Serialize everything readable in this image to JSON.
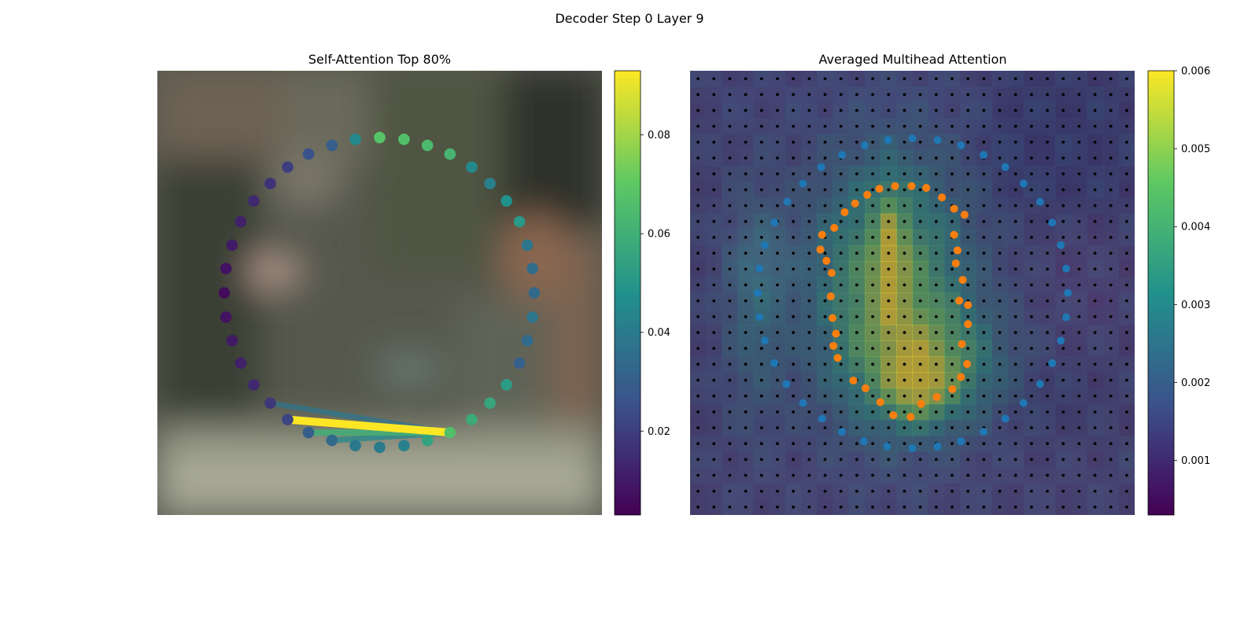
{
  "figure": {
    "title": "Decoder Step 0 Layer 9"
  },
  "colors": {
    "viridis": [
      "#440154",
      "#3b528b",
      "#21918c",
      "#5ec962",
      "#fde725"
    ],
    "orange": "#ff7f0e",
    "blue": "#1f77b4"
  },
  "chart_data": [
    {
      "type": "scatter",
      "title": "Self-Attention Top 80%",
      "image_size": 512,
      "xlim": [
        0,
        512
      ],
      "ylim": [
        512,
        0
      ],
      "colorbar": {
        "min": 0.003,
        "max": 0.093,
        "ticks": [
          0.02,
          0.04,
          0.06,
          0.08
        ],
        "tick_labels": [
          "0.02",
          "0.04",
          "0.06",
          "0.08"
        ]
      },
      "points": [
        {
          "x": 256,
          "y": 77,
          "v": 0.068
        },
        {
          "x": 284,
          "y": 79,
          "v": 0.066
        },
        {
          "x": 311,
          "y": 86,
          "v": 0.064
        },
        {
          "x": 337,
          "y": 96,
          "v": 0.062
        },
        {
          "x": 362,
          "y": 111,
          "v": 0.045
        },
        {
          "x": 383,
          "y": 130,
          "v": 0.042
        },
        {
          "x": 402,
          "y": 150,
          "v": 0.048
        },
        {
          "x": 417,
          "y": 174,
          "v": 0.051
        },
        {
          "x": 426,
          "y": 201,
          "v": 0.038
        },
        {
          "x": 432,
          "y": 228,
          "v": 0.035
        },
        {
          "x": 434,
          "y": 256,
          "v": 0.034
        },
        {
          "x": 432,
          "y": 284,
          "v": 0.038
        },
        {
          "x": 426,
          "y": 311,
          "v": 0.034
        },
        {
          "x": 417,
          "y": 337,
          "v": 0.03
        },
        {
          "x": 402,
          "y": 362,
          "v": 0.052
        },
        {
          "x": 383,
          "y": 383,
          "v": 0.056
        },
        {
          "x": 362,
          "y": 402,
          "v": 0.058
        },
        {
          "x": 337,
          "y": 417,
          "v": 0.066
        },
        {
          "x": 311,
          "y": 426,
          "v": 0.055
        },
        {
          "x": 284,
          "y": 432,
          "v": 0.042
        },
        {
          "x": 256,
          "y": 434,
          "v": 0.04
        },
        {
          "x": 228,
          "y": 432,
          "v": 0.039
        },
        {
          "x": 201,
          "y": 426,
          "v": 0.034
        },
        {
          "x": 174,
          "y": 417,
          "v": 0.03
        },
        {
          "x": 150,
          "y": 402,
          "v": 0.022
        },
        {
          "x": 130,
          "y": 383,
          "v": 0.018
        },
        {
          "x": 111,
          "y": 362,
          "v": 0.014
        },
        {
          "x": 96,
          "y": 337,
          "v": 0.012
        },
        {
          "x": 86,
          "y": 311,
          "v": 0.01
        },
        {
          "x": 79,
          "y": 284,
          "v": 0.008
        },
        {
          "x": 77,
          "y": 256,
          "v": 0.006
        },
        {
          "x": 79,
          "y": 228,
          "v": 0.008
        },
        {
          "x": 86,
          "y": 201,
          "v": 0.01
        },
        {
          "x": 96,
          "y": 174,
          "v": 0.012
        },
        {
          "x": 111,
          "y": 150,
          "v": 0.014
        },
        {
          "x": 130,
          "y": 130,
          "v": 0.017
        },
        {
          "x": 150,
          "y": 111,
          "v": 0.02
        },
        {
          "x": 174,
          "y": 96,
          "v": 0.026
        },
        {
          "x": 201,
          "y": 86,
          "v": 0.03
        },
        {
          "x": 228,
          "y": 79,
          "v": 0.045
        }
      ],
      "links": [
        {
          "from": [
            337,
            417
          ],
          "to": [
            130,
            383
          ],
          "v": 0.038
        },
        {
          "from": [
            337,
            417
          ],
          "to": [
            150,
            402
          ],
          "v": 0.093
        },
        {
          "from": [
            337,
            417
          ],
          "to": [
            174,
            417
          ],
          "v": 0.06
        },
        {
          "from": [
            337,
            417
          ],
          "to": [
            201,
            426
          ],
          "v": 0.045
        }
      ]
    },
    {
      "type": "heatmap",
      "title": "Averaged Multihead Attention",
      "image_size": 512,
      "grid": 28,
      "colorbar": {
        "min": 0.0003,
        "max": 0.006,
        "ticks": [
          0.001,
          0.002,
          0.003,
          0.004,
          0.005,
          0.006
        ],
        "tick_labels": [
          "0.001",
          "0.002",
          "0.003",
          "0.004",
          "0.005",
          "0.006"
        ]
      },
      "hotspots": [
        {
          "x": 230,
          "y": 250,
          "sx": 60,
          "sy": 100,
          "a": 0.0032
        },
        {
          "x": 280,
          "y": 340,
          "sx": 55,
          "sy": 45,
          "a": 0.0022
        },
        {
          "x": 230,
          "y": 210,
          "sx": 12,
          "sy": 50,
          "a": 0.002
        },
        {
          "x": 262,
          "y": 370,
          "sx": 25,
          "sy": 25,
          "a": 0.0016
        },
        {
          "x": 75,
          "y": 270,
          "sx": 25,
          "sy": 90,
          "a": 0.0011
        }
      ],
      "orange_points": [
        [
          236,
          133
        ],
        [
          255,
          133
        ],
        [
          272,
          135
        ],
        [
          290,
          146
        ],
        [
          304,
          159
        ],
        [
          316,
          166
        ],
        [
          304,
          189
        ],
        [
          308,
          207
        ],
        [
          306,
          222
        ],
        [
          314,
          241
        ],
        [
          310,
          265
        ],
        [
          320,
          270
        ],
        [
          320,
          292
        ],
        [
          313,
          315
        ],
        [
          319,
          338
        ],
        [
          312,
          353
        ],
        [
          302,
          367
        ],
        [
          284,
          376
        ],
        [
          266,
          384
        ],
        [
          254,
          399
        ],
        [
          234,
          397
        ],
        [
          219,
          382
        ],
        [
          202,
          366
        ],
        [
          188,
          357
        ],
        [
          170,
          331
        ],
        [
          165,
          317
        ],
        [
          168,
          303
        ],
        [
          164,
          285
        ],
        [
          162,
          260
        ],
        [
          163,
          233
        ],
        [
          157,
          219
        ],
        [
          150,
          206
        ],
        [
          152,
          189
        ],
        [
          166,
          181
        ],
        [
          178,
          163
        ],
        [
          190,
          153
        ],
        [
          204,
          143
        ],
        [
          218,
          136
        ]
      ],
      "blue_points": [
        [
          256,
          78
        ],
        [
          285,
          80
        ],
        [
          312,
          86
        ],
        [
          338,
          97
        ],
        [
          363,
          111
        ],
        [
          384,
          130
        ],
        [
          403,
          151
        ],
        [
          417,
          175
        ],
        [
          427,
          201
        ],
        [
          433,
          228
        ],
        [
          435,
          256
        ],
        [
          433,
          284
        ],
        [
          427,
          311
        ],
        [
          417,
          337
        ],
        [
          403,
          361
        ],
        [
          384,
          383
        ],
        [
          363,
          401
        ],
        [
          338,
          416
        ],
        [
          312,
          427
        ],
        [
          285,
          433
        ],
        [
          256,
          435
        ],
        [
          227,
          433
        ],
        [
          200,
          427
        ],
        [
          175,
          416
        ],
        [
          152,
          401
        ],
        [
          130,
          383
        ],
        [
          111,
          361
        ],
        [
          97,
          337
        ],
        [
          86,
          311
        ],
        [
          80,
          284
        ],
        [
          78,
          256
        ],
        [
          80,
          228
        ],
        [
          86,
          201
        ],
        [
          97,
          175
        ],
        [
          112,
          151
        ],
        [
          130,
          130
        ],
        [
          151,
          111
        ],
        [
          175,
          97
        ],
        [
          201,
          86
        ],
        [
          228,
          80
        ]
      ]
    }
  ]
}
